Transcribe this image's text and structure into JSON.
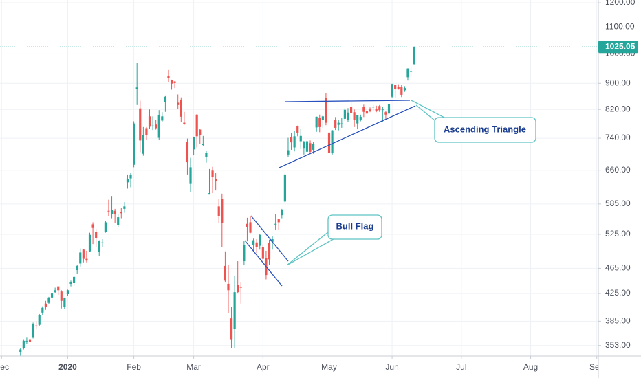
{
  "chart_data": {
    "type": "candlestick",
    "x": [
      6,
      7,
      8,
      9,
      10,
      11,
      12,
      13,
      14,
      15,
      16,
      17,
      18,
      19,
      20,
      21,
      22,
      23,
      24,
      25,
      26,
      27,
      28,
      29,
      30,
      31,
      32,
      33,
      34,
      35,
      36,
      37,
      38,
      39,
      40,
      41,
      42,
      43,
      44,
      45,
      46,
      47,
      48,
      49,
      50,
      51,
      52,
      53,
      54,
      55,
      56,
      57,
      58,
      59,
      60,
      61,
      62,
      63,
      64,
      65,
      66,
      67,
      68,
      69,
      70,
      71,
      72,
      73,
      74,
      75,
      76,
      77,
      78,
      79,
      80,
      81,
      82,
      83,
      84,
      85,
      86,
      87,
      88,
      89,
      90,
      91,
      92,
      93,
      94,
      95,
      96,
      97,
      98,
      99,
      100,
      101,
      102,
      103,
      104,
      105,
      106,
      107,
      108,
      109,
      110,
      111,
      112,
      113,
      114,
      115,
      116,
      117,
      118,
      119,
      120,
      121,
      122,
      123,
      124,
      125,
      126,
      127,
      128,
      129,
      130,
      131
    ],
    "open": [
      345,
      350,
      359,
      361,
      363,
      379,
      380,
      397,
      410,
      411,
      419,
      427,
      436,
      428,
      405,
      424,
      440,
      441,
      462,
      473,
      497,
      481,
      494,
      544,
      529,
      493,
      510,
      530,
      571,
      565,
      571,
      542,
      568,
      575,
      632,
      641,
      673,
      883,
      823,
      700,
      767,
      800,
      774,
      777,
      741,
      788,
      841,
      923,
      911,
      906,
      840,
      849,
      782,
      730,
      630,
      711,
      805,
      763,
      723,
      691,
      605,
      659,
      640,
      580,
      595,
      469,
      440,
      389,
      375,
      438,
      435,
      477,
      545,
      548,
      505,
      510,
      504,
      501,
      482,
      509,
      511,
      545,
      554,
      562,
      590,
      698,
      742,
      716,
      772,
      732,
      713,
      705,
      727,
      710,
      769,
      795,
      790,
      855,
      755,
      701,
      789,
      776,
      778,
      793,
      790,
      827,
      812,
      780,
      790,
      827,
      815,
      820,
      826,
      822,
      830,
      820,
      812,
      808,
      858,
      895,
      888,
      888,
      878,
      920,
      940,
      964
    ],
    "high": [
      350,
      361,
      363,
      365,
      383,
      385,
      395,
      406,
      414,
      420,
      426,
      434,
      436,
      430,
      419,
      431,
      445,
      452,
      471,
      499,
      498,
      495,
      528,
      548,
      535,
      514,
      516,
      550,
      594,
      602,
      575,
      564,
      577,
      589,
      650,
      654,
      786,
      968,
      846,
      770,
      770,
      820,
      800,
      789,
      818,
      812,
      862,
      944,
      912,
      907,
      865,
      856,
      813,
      739,
      690,
      744,
      806,
      766,
      746,
      708,
      663,
      668,
      653,
      595,
      607,
      494,
      471,
      405,
      452,
      477,
      442,
      513,
      557,
      561,
      517,
      516,
      526,
      507,
      495,
      515,
      521,
      565,
      555,
      575,
      652,
      741,
      753,
      759,
      774,
      765,
      733,
      735,
      734,
      730,
      799,
      805,
      803,
      870,
      772,
      762,
      798,
      789,
      796,
      824,
      824,
      843,
      820,
      804,
      805,
      834,
      822,
      826,
      833,
      831,
      833,
      827,
      815,
      836,
      899,
      896,
      897,
      895,
      891,
      950,
      954,
      1027
    ],
    "low": [
      340,
      348,
      355,
      356,
      362,
      375,
      378,
      394,
      401,
      409,
      416,
      426,
      423,
      403,
      402,
      421,
      436,
      437,
      456,
      468,
      475,
      475,
      493,
      507,
      501,
      486,
      502,
      528,
      560,
      556,
      547,
      539,
      556,
      567,
      618,
      621,
      667,
      833,
      704,
      695,
      735,
      765,
      762,
      763,
      735,
      785,
      813,
      905,
      880,
      885,
      822,
      785,
      776,
      650,
      611,
      696,
      716,
      725,
      719,
      678,
      605,
      608,
      614,
      546,
      502,
      442,
      396,
      350,
      350,
      425,
      410,
      470,
      512,
      527,
      495,
      491,
      497,
      477,
      447,
      471,
      497,
      533,
      534,
      556,
      587,
      692,
      710,
      706,
      745,
      712,
      698,
      701,
      703,
      700,
      757,
      756,
      768,
      775,
      683,
      698,
      762,
      761,
      768,
      787,
      785,
      808,
      770,
      764,
      786,
      798,
      806,
      812,
      815,
      812,
      813,
      785,
      793,
      792,
      854,
      855,
      880,
      857,
      873,
      909,
      922,
      963
    ],
    "close": [
      348,
      359,
      359,
      358,
      381,
      378,
      393,
      404,
      405,
      419,
      425,
      430,
      430,
      414,
      418,
      430,
      443,
      451,
      469,
      492,
      481,
      478,
      524,
      537,
      518,
      513,
      510,
      548,
      570,
      573,
      565,
      558,
      566,
      580,
      640,
      650,
      780,
      887,
      734,
      749,
      748,
      771,
      774,
      767,
      804,
      800,
      858,
      917,
      899,
      901,
      833,
      799,
      778,
      679,
      667,
      743,
      745,
      749,
      724,
      703,
      608,
      645,
      634,
      560,
      546,
      445,
      430,
      361,
      427,
      427,
      434,
      505,
      539,
      528,
      514,
      502,
      524,
      481,
      454,
      480,
      516,
      545,
      548,
      573,
      650,
      709,
      729,
      745,
      753,
      746,
      730,
      732,
      705,
      725,
      799,
      770,
      800,
      782,
      702,
      761,
      768,
      782,
      780,
      819,
      811,
      809,
      790,
      803,
      799,
      813,
      808,
      815,
      828,
      816,
      818,
      820,
      805,
      835,
      898,
      881,
      882,
      864,
      885,
      949,
      940,
      1025
    ],
    "up_color": "#26a69a",
    "down_color": "#ef5350",
    "xlim": [
      -0.5,
      189.5
    ],
    "xticks": [
      {
        "value": 0,
        "label": "Dec"
      },
      {
        "value": 21,
        "label": "2020"
      },
      {
        "value": 42,
        "label": "Feb"
      },
      {
        "value": 61,
        "label": "Mar"
      },
      {
        "value": 83,
        "label": "Apr"
      },
      {
        "value": 104,
        "label": "May"
      },
      {
        "value": 124,
        "label": "Jun"
      },
      {
        "value": 146,
        "label": "Jul"
      },
      {
        "value": 168,
        "label": "Aug"
      },
      {
        "value": 189,
        "label": "Sep"
      }
    ],
    "ylim": [
      340,
      1212
    ],
    "log_y": true,
    "yticks": [
      {
        "value": 353,
        "label": "353.00"
      },
      {
        "value": 385,
        "label": "385.00"
      },
      {
        "value": 425,
        "label": "425.00"
      },
      {
        "value": 465,
        "label": "465.00"
      },
      {
        "value": 525,
        "label": "525.00"
      },
      {
        "value": 585,
        "label": "585.00"
      },
      {
        "value": 660,
        "label": "660.00"
      },
      {
        "value": 740,
        "label": "740.00"
      },
      {
        "value": 820,
        "label": "820.00"
      },
      {
        "value": 900,
        "label": "900.00"
      },
      {
        "value": 1000,
        "label": "1000.00"
      },
      {
        "value": 1100,
        "label": "1100.00"
      },
      {
        "value": 1200,
        "label": "1200.00"
      }
    ],
    "grid": true,
    "last_price": 1025.05,
    "annotations": [
      "Ascending Triangle",
      "Bull Flag"
    ]
  }
}
